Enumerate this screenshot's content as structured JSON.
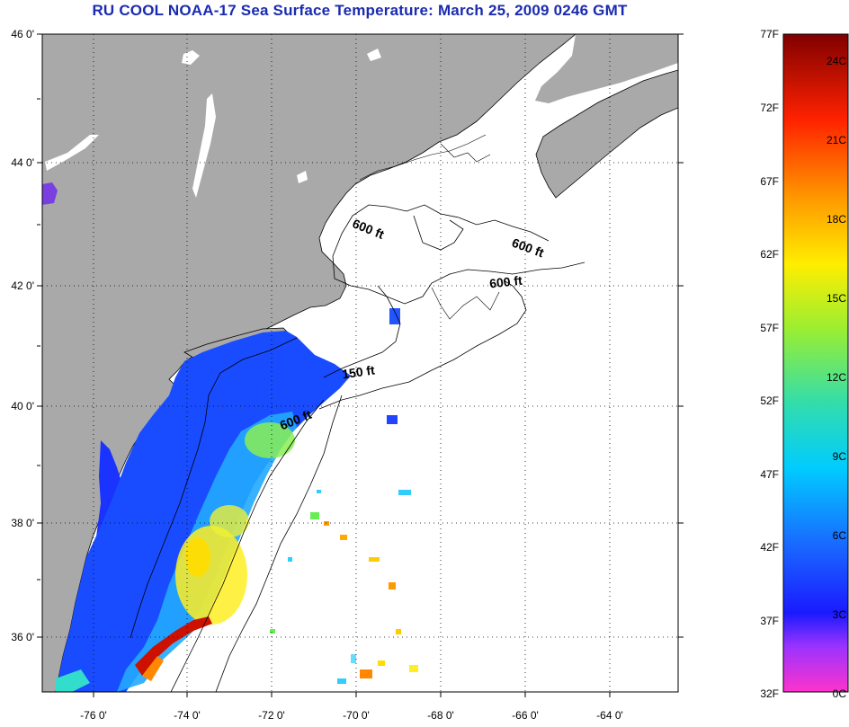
{
  "title": "RU COOL  NOAA-17  Sea Surface Temperature:  March 25, 2009 0246 GMT",
  "map": {
    "lat_labels": [
      "46 0'",
      "44 0'",
      "42 0'",
      "40 0'",
      "38 0'",
      "36 0'"
    ],
    "lon_labels": [
      "-76 0'",
      "-74 0'",
      "-72 0'",
      "-70 0'",
      "-68 0'",
      "-66 0'",
      "-64 0'"
    ],
    "contour_labels": [
      "600 ft",
      "600 ft",
      "600 ft",
      "150 ft",
      "600 ft"
    ],
    "colors": {
      "land": "#a9a9a9",
      "no_data": "#ffffff",
      "coast": "#000000"
    }
  },
  "colorbar": {
    "fahrenheit_labels": [
      "77F",
      "72F",
      "67F",
      "62F",
      "57F",
      "52F",
      "47F",
      "42F",
      "37F",
      "32F"
    ],
    "celsius_labels": [
      "24C",
      "21C",
      "18C",
      "15C",
      "12C",
      "9C",
      "6C",
      "3C",
      "0C"
    ],
    "colors": [
      "#ff33cc",
      "#9933ff",
      "#1a1aff",
      "#1a66ff",
      "#00ccff",
      "#33ddaa",
      "#66ee44",
      "#ffee00",
      "#ff9900",
      "#ff3300",
      "#cc0000",
      "#800000"
    ]
  }
}
